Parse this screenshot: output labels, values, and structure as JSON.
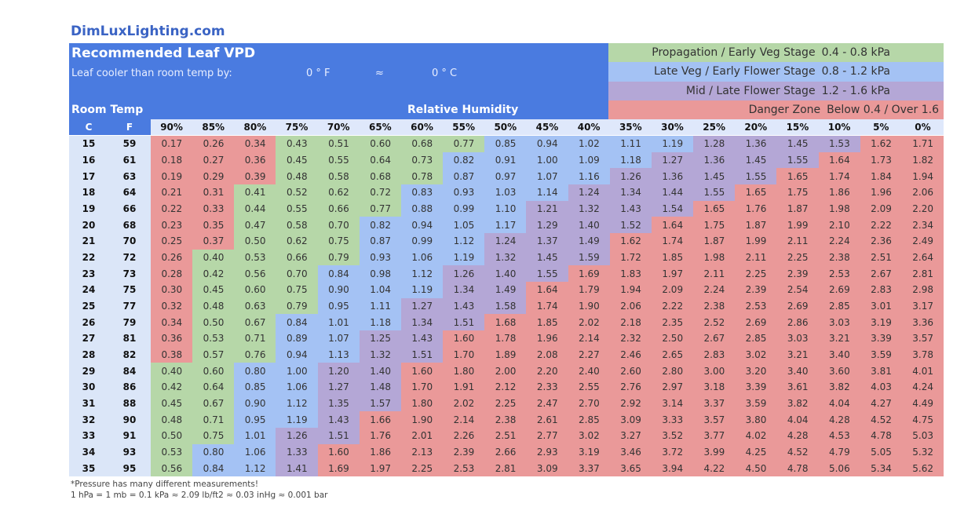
{
  "header": {
    "site": "DimLuxLighting.com",
    "title": "Recommended Leaf VPD",
    "offset_label": "Leaf cooler than room temp by:",
    "offset_f": "0 ° F",
    "approx": "≈",
    "offset_c": "0 ° C",
    "room_temp": "Room Temp",
    "humidity_label": "Relative Humidity"
  },
  "legend": [
    {
      "label": "Propagation / Early Veg Stage",
      "range": "0.4 - 0.8 kPa",
      "color": "#b6d7a8",
      "min": 0.4,
      "max": 0.8
    },
    {
      "label": "Late Veg / Early Flower Stage",
      "range": "0.8 - 1.2 kPa",
      "color": "#a4c2f4",
      "min": 0.8,
      "max": 1.2
    },
    {
      "label": "Mid / Late Flower Stage",
      "range": "1.2 - 1.6 kPa",
      "color": "#b4a7d6",
      "min": 1.2,
      "max": 1.6
    },
    {
      "label": "Danger Zone",
      "range": "Below 0.4 / Over 1.6",
      "color": "#ea9999"
    }
  ],
  "table": {
    "columns": [
      "C",
      "F",
      "90%",
      "85%",
      "80%",
      "75%",
      "70%",
      "65%",
      "60%",
      "55%",
      "50%",
      "45%",
      "40%",
      "35%",
      "30%",
      "25%",
      "20%",
      "15%",
      "10%",
      "5%",
      "0%"
    ],
    "rows": [
      {
        "c": 15,
        "f": 59,
        "values": [
          "0.17",
          "0.26",
          "0.34",
          "0.43",
          "0.51",
          "0.60",
          "0.68",
          "0.77",
          "0.85",
          "0.94",
          "1.02",
          "1.11",
          "1.19",
          "1.28",
          "1.36",
          "1.45",
          "1.53",
          "1.62",
          "1.71"
        ]
      },
      {
        "c": 16,
        "f": 61,
        "values": [
          "0.18",
          "0.27",
          "0.36",
          "0.45",
          "0.55",
          "0.64",
          "0.73",
          "0.82",
          "0.91",
          "1.00",
          "1.09",
          "1.18",
          "1.27",
          "1.36",
          "1.45",
          "1.55",
          "1.64",
          "1.73",
          "1.82"
        ]
      },
      {
        "c": 17,
        "f": 63,
        "values": [
          "0.19",
          "0.29",
          "0.39",
          "0.48",
          "0.58",
          "0.68",
          "0.78",
          "0.87",
          "0.97",
          "1.07",
          "1.16",
          "1.26",
          "1.36",
          "1.45",
          "1.55",
          "1.65",
          "1.74",
          "1.84",
          "1.94"
        ]
      },
      {
        "c": 18,
        "f": 64,
        "values": [
          "0.21",
          "0.31",
          "0.41",
          "0.52",
          "0.62",
          "0.72",
          "0.83",
          "0.93",
          "1.03",
          "1.14",
          "1.24",
          "1.34",
          "1.44",
          "1.55",
          "1.65",
          "1.75",
          "1.86",
          "1.96",
          "2.06"
        ]
      },
      {
        "c": 19,
        "f": 66,
        "values": [
          "0.22",
          "0.33",
          "0.44",
          "0.55",
          "0.66",
          "0.77",
          "0.88",
          "0.99",
          "1.10",
          "1.21",
          "1.32",
          "1.43",
          "1.54",
          "1.65",
          "1.76",
          "1.87",
          "1.98",
          "2.09",
          "2.20"
        ]
      },
      {
        "c": 20,
        "f": 68,
        "values": [
          "0.23",
          "0.35",
          "0.47",
          "0.58",
          "0.70",
          "0.82",
          "0.94",
          "1.05",
          "1.17",
          "1.29",
          "1.40",
          "1.52",
          "1.64",
          "1.75",
          "1.87",
          "1.99",
          "2.10",
          "2.22",
          "2.34"
        ]
      },
      {
        "c": 21,
        "f": 70,
        "values": [
          "0.25",
          "0.37",
          "0.50",
          "0.62",
          "0.75",
          "0.87",
          "0.99",
          "1.12",
          "1.24",
          "1.37",
          "1.49",
          "1.62",
          "1.74",
          "1.87",
          "1.99",
          "2.11",
          "2.24",
          "2.36",
          "2.49"
        ]
      },
      {
        "c": 22,
        "f": 72,
        "values": [
          "0.26",
          "0.40",
          "0.53",
          "0.66",
          "0.79",
          "0.93",
          "1.06",
          "1.19",
          "1.32",
          "1.45",
          "1.59",
          "1.72",
          "1.85",
          "1.98",
          "2.11",
          "2.25",
          "2.38",
          "2.51",
          "2.64"
        ]
      },
      {
        "c": 23,
        "f": 73,
        "values": [
          "0.28",
          "0.42",
          "0.56",
          "0.70",
          "0.84",
          "0.98",
          "1.12",
          "1.26",
          "1.40",
          "1.55",
          "1.69",
          "1.83",
          "1.97",
          "2.11",
          "2.25",
          "2.39",
          "2.53",
          "2.67",
          "2.81"
        ]
      },
      {
        "c": 24,
        "f": 75,
        "values": [
          "0.30",
          "0.45",
          "0.60",
          "0.75",
          "0.90",
          "1.04",
          "1.19",
          "1.34",
          "1.49",
          "1.64",
          "1.79",
          "1.94",
          "2.09",
          "2.24",
          "2.39",
          "2.54",
          "2.69",
          "2.83",
          "2.98"
        ]
      },
      {
        "c": 25,
        "f": 77,
        "values": [
          "0.32",
          "0.48",
          "0.63",
          "0.79",
          "0.95",
          "1.11",
          "1.27",
          "1.43",
          "1.58",
          "1.74",
          "1.90",
          "2.06",
          "2.22",
          "2.38",
          "2.53",
          "2.69",
          "2.85",
          "3.01",
          "3.17"
        ]
      },
      {
        "c": 26,
        "f": 79,
        "values": [
          "0.34",
          "0.50",
          "0.67",
          "0.84",
          "1.01",
          "1.18",
          "1.34",
          "1.51",
          "1.68",
          "1.85",
          "2.02",
          "2.18",
          "2.35",
          "2.52",
          "2.69",
          "2.86",
          "3.03",
          "3.19",
          "3.36"
        ]
      },
      {
        "c": 27,
        "f": 81,
        "values": [
          "0.36",
          "0.53",
          "0.71",
          "0.89",
          "1.07",
          "1.25",
          "1.43",
          "1.60",
          "1.78",
          "1.96",
          "2.14",
          "2.32",
          "2.50",
          "2.67",
          "2.85",
          "3.03",
          "3.21",
          "3.39",
          "3.57"
        ]
      },
      {
        "c": 28,
        "f": 82,
        "values": [
          "0.38",
          "0.57",
          "0.76",
          "0.94",
          "1.13",
          "1.32",
          "1.51",
          "1.70",
          "1.89",
          "2.08",
          "2.27",
          "2.46",
          "2.65",
          "2.83",
          "3.02",
          "3.21",
          "3.40",
          "3.59",
          "3.78"
        ]
      },
      {
        "c": 29,
        "f": 84,
        "values": [
          "0.40",
          "0.60",
          "0.80",
          "1.00",
          "1.20",
          "1.40",
          "1.60",
          "1.80",
          "2.00",
          "2.20",
          "2.40",
          "2.60",
          "2.80",
          "3.00",
          "3.20",
          "3.40",
          "3.60",
          "3.81",
          "4.01"
        ]
      },
      {
        "c": 30,
        "f": 86,
        "values": [
          "0.42",
          "0.64",
          "0.85",
          "1.06",
          "1.27",
          "1.48",
          "1.70",
          "1.91",
          "2.12",
          "2.33",
          "2.55",
          "2.76",
          "2.97",
          "3.18",
          "3.39",
          "3.61",
          "3.82",
          "4.03",
          "4.24"
        ]
      },
      {
        "c": 31,
        "f": 88,
        "values": [
          "0.45",
          "0.67",
          "0.90",
          "1.12",
          "1.35",
          "1.57",
          "1.80",
          "2.02",
          "2.25",
          "2.47",
          "2.70",
          "2.92",
          "3.14",
          "3.37",
          "3.59",
          "3.82",
          "4.04",
          "4.27",
          "4.49"
        ]
      },
      {
        "c": 32,
        "f": 90,
        "values": [
          "0.48",
          "0.71",
          "0.95",
          "1.19",
          "1.43",
          "1.66",
          "1.90",
          "2.14",
          "2.38",
          "2.61",
          "2.85",
          "3.09",
          "3.33",
          "3.57",
          "3.80",
          "4.04",
          "4.28",
          "4.52",
          "4.75"
        ]
      },
      {
        "c": 33,
        "f": 91,
        "values": [
          "0.50",
          "0.75",
          "1.01",
          "1.26",
          "1.51",
          "1.76",
          "2.01",
          "2.26",
          "2.51",
          "2.77",
          "3.02",
          "3.27",
          "3.52",
          "3.77",
          "4.02",
          "4.28",
          "4.53",
          "4.78",
          "5.03"
        ]
      },
      {
        "c": 34,
        "f": 93,
        "values": [
          "0.53",
          "0.80",
          "1.06",
          "1.33",
          "1.60",
          "1.86",
          "2.13",
          "2.39",
          "2.66",
          "2.93",
          "3.19",
          "3.46",
          "3.72",
          "3.99",
          "4.25",
          "4.52",
          "4.79",
          "5.05",
          "5.32"
        ]
      },
      {
        "c": 35,
        "f": 95,
        "values": [
          "0.56",
          "0.84",
          "1.12",
          "1.41",
          "1.69",
          "1.97",
          "2.25",
          "2.53",
          "2.81",
          "3.09",
          "3.37",
          "3.65",
          "3.94",
          "4.22",
          "4.50",
          "4.78",
          "5.06",
          "5.34",
          "5.62"
        ]
      }
    ]
  },
  "footnote": [
    "*Pressure has many different measurements!",
    "1 hPa = 1 mb = 0.1 kPa ≈ 2.09 lb/ft2 ≈ 0.03 inHg ≈ 0.001 bar"
  ]
}
